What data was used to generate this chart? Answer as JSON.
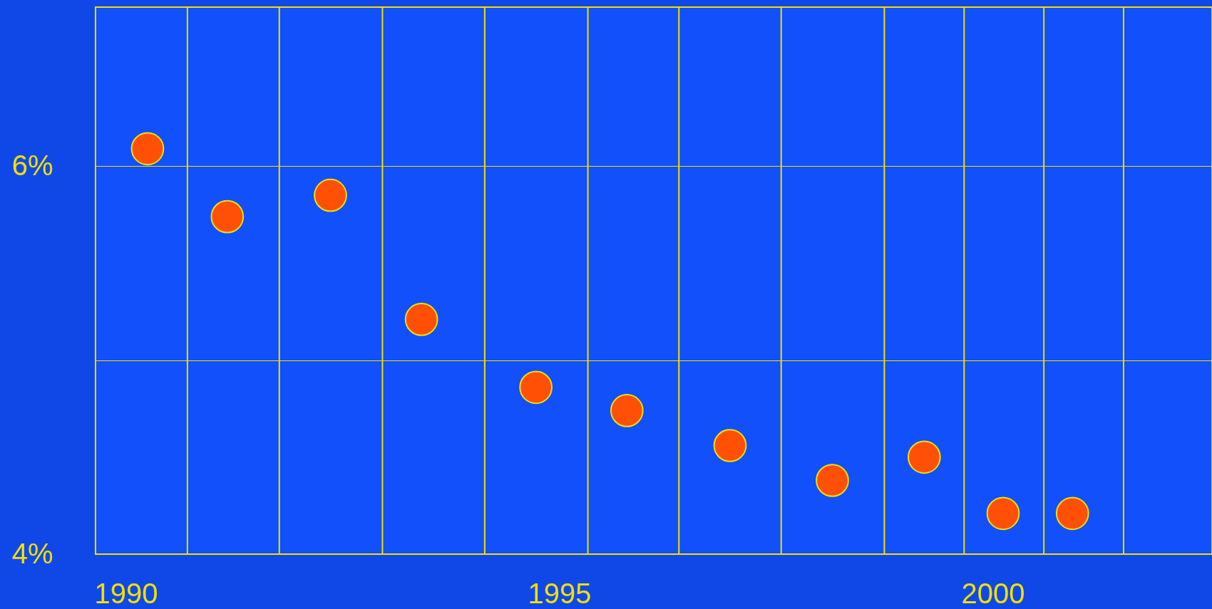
{
  "chart_data": {
    "type": "scatter",
    "x": [
      1990.25,
      1991.17,
      1992.36,
      1993.41,
      1994.73,
      1995.78,
      1996.97,
      1998.15,
      1999.21,
      2000.12,
      2000.92
    ],
    "series": [
      {
        "color": "#ff5005",
        "values": [
          6.09,
          5.74,
          5.85,
          5.21,
          4.86,
          4.74,
          4.56,
          4.38,
          4.5,
          4.21,
          4.21
        ]
      }
    ],
    "xlim": [
      1989.65,
      2002.53
    ],
    "xticks": [
      1990,
      1995,
      2000
    ],
    "ylim": [
      4,
      6.82
    ],
    "yticks": [
      {
        "value": 4,
        "label": "4%"
      },
      {
        "value": 5,
        "label": null
      },
      {
        "value": 6,
        "label": "6%"
      }
    ],
    "grid": "y",
    "marker": "circle",
    "ref_lines": [
      {
        "axis": "x",
        "value": 1990.71,
        "color": "#f0e000"
      },
      {
        "axis": "x",
        "value": 1991.77,
        "color": "#f0e000"
      },
      {
        "axis": "x",
        "value": 1992.96,
        "color": "#f0e000"
      },
      {
        "axis": "x",
        "value": 1994.14,
        "color": "#f0e000"
      },
      {
        "axis": "x",
        "value": 1995.33,
        "color": "#f0e000"
      },
      {
        "axis": "x",
        "value": 1996.38,
        "color": "#f0e000"
      },
      {
        "axis": "x",
        "value": 1997.56,
        "color": "#f0e000"
      },
      {
        "axis": "x",
        "value": 1998.75,
        "color": "#f0e000"
      },
      {
        "axis": "x",
        "value": 1999.67,
        "color": "#f0e000"
      },
      {
        "axis": "x",
        "value": 2000.59,
        "color": "#f0e000"
      },
      {
        "axis": "x",
        "value": 2001.51,
        "color": "#f0e000"
      }
    ]
  }
}
